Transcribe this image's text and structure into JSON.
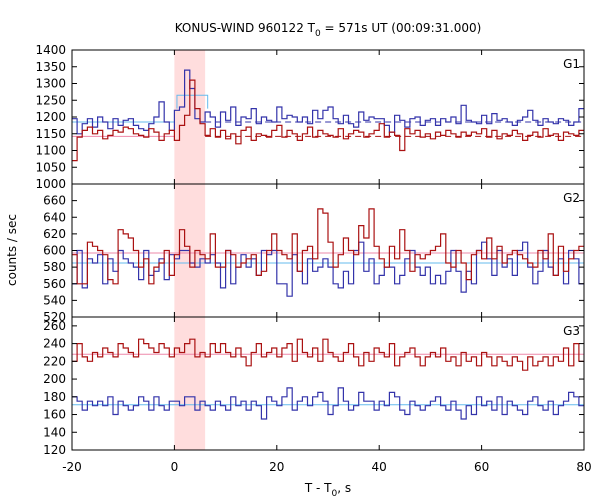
{
  "chart_data": {
    "type": "line",
    "title": "KONUS-WIND 960122 T",
    "title_sub": "0",
    "title_rest": " = 571s UT (00:09:31.000)",
    "xlabel": "T - T",
    "xlabel_sub": "0",
    "xlabel_rest": ", s",
    "ylabel": "counts / sec",
    "xlim": [
      -20,
      80
    ],
    "x_ticks": [
      -20,
      0,
      20,
      40,
      60,
      80
    ],
    "x_tick_labels": [
      "-20",
      "0",
      "20",
      "40",
      "60",
      "80"
    ],
    "shaded_interval": {
      "x0": 0,
      "x1": 6,
      "color": "#ffdddd"
    },
    "step": 1,
    "x_start": -20,
    "colors": {
      "blue": "#3333aa",
      "red": "#aa1111",
      "cyan": "#66bbee",
      "pink": "#ee88aa"
    },
    "panels": [
      {
        "label": "G1",
        "ylim": [
          1000,
          1400
        ],
        "y_ticks": [
          1000,
          1050,
          1100,
          1150,
          1200,
          1250,
          1300,
          1350,
          1400
        ],
        "y_tick_labels": [
          "1000",
          "1050",
          "1100",
          "1150",
          "1200",
          "1250",
          "1300",
          "1350",
          "1400"
        ],
        "series": [
          {
            "color": "#3333aa",
            "values": [
              1195,
              1150,
              1180,
              1195,
              1170,
              1200,
              1185,
              1165,
              1195,
              1175,
              1190,
              1195,
              1175,
              1165,
              1160,
              1180,
              1200,
              1245,
              1185,
              1160,
              1220,
              1230,
              1340,
              1285,
              1195,
              1185,
              1215,
              1200,
              1170,
              1215,
              1190,
              1230,
              1175,
              1200,
              1195,
              1225,
              1180,
              1200,
              1190,
              1185,
              1230,
              1195,
              1205,
              1200,
              1185,
              1200,
              1180,
              1220,
              1195,
              1220,
              1230,
              1195,
              1180,
              1205,
              1180,
              1170,
              1215,
              1190,
              1200,
              1195,
              1195,
              1175,
              1155,
              1205,
              1190,
              1170,
              1195,
              1200,
              1175,
              1190,
              1195,
              1175,
              1195,
              1185,
              1200,
              1180,
              1235,
              1190,
              1185,
              1180,
              1205,
              1180,
              1210,
              1190,
              1195,
              1185,
              1175,
              1190,
              1200,
              1220,
              1190,
              1175,
              1195,
              1185,
              1180,
              1195,
              1190,
              1175,
              1185,
              1225
            ]
          },
          {
            "color": "#aa1111",
            "values": [
              1070,
              1140,
              1160,
              1170,
              1150,
              1160,
              1135,
              1145,
              1160,
              1155,
              1170,
              1165,
              1150,
              1145,
              1140,
              1165,
              1155,
              1130,
              1150,
              1160,
              1130,
              1175,
              1205,
              1310,
              1225,
              1180,
              1145,
              1165,
              1140,
              1160,
              1135,
              1150,
              1120,
              1160,
              1170,
              1130,
              1150,
              1145,
              1140,
              1160,
              1175,
              1140,
              1160,
              1150,
              1130,
              1150,
              1170,
              1140,
              1160,
              1150,
              1145,
              1140,
              1165,
              1135,
              1150,
              1160,
              1155,
              1140,
              1150,
              1160,
              1180,
              1140,
              1155,
              1145,
              1100,
              1165,
              1150,
              1160,
              1140,
              1150,
              1135,
              1155,
              1145,
              1160,
              1150,
              1140,
              1155,
              1145,
              1155,
              1150,
              1165,
              1140,
              1160,
              1135,
              1150,
              1145,
              1160,
              1150,
              1130,
              1145,
              1155,
              1140,
              1165,
              1145,
              1150,
              1130,
              1155,
              1150,
              1145,
              1160
            ]
          }
        ],
        "bg_lines": [
          {
            "color": "#3333aa",
            "value": 1185,
            "dashed": true,
            "x0": 6,
            "x1": 80
          },
          {
            "color": "#aa1111",
            "value": 1142,
            "dashed": true,
            "x0": 6,
            "x1": 80
          },
          {
            "color": "#66bbee",
            "value": 1185,
            "dashed": false,
            "x0": -20,
            "x1": 0
          },
          {
            "color": "#ee88aa",
            "value": 1142,
            "dashed": false,
            "x0": -20,
            "x1": 0
          }
        ],
        "boxes": [
          {
            "color": "#66bbee",
            "x0": 0.5,
            "x1": 6.5,
            "value": 1265
          }
        ]
      },
      {
        "label": "G2",
        "ylim": [
          520,
          680
        ],
        "y_ticks": [
          520,
          540,
          560,
          580,
          600,
          620,
          640,
          660
        ],
        "y_tick_labels": [
          "520",
          "540",
          "560",
          "580",
          "600",
          "620",
          "640",
          "660"
        ],
        "series": [
          {
            "color": "#3333aa",
            "values": [
              560,
              600,
              555,
              590,
              585,
              595,
              560,
              590,
              575,
              600,
              590,
              585,
              580,
              565,
              600,
              570,
              575,
              590,
              565,
              595,
              590,
              600,
              600,
              585,
              580,
              590,
              585,
              595,
              585,
              555,
              600,
              560,
              580,
              595,
              580,
              590,
              570,
              600,
              595,
              600,
              560,
              560,
              545,
              595,
              575,
              560,
              590,
              575,
              580,
              590,
              580,
              560,
              555,
              575,
              560,
              600,
              610,
              575,
              590,
              560,
              570,
              580,
              580,
              560,
              570,
              590,
              600,
              580,
              570,
              580,
              560,
              570,
              560,
              575,
              600,
              575,
              550,
              575,
              560,
              600,
              610,
              590,
              570,
              600,
              580,
              590,
              570,
              600,
              610,
              580,
              560,
              575,
              600,
              580,
              570,
              590,
              560,
              600,
              590,
              560
            ]
          },
          {
            "color": "#aa1111",
            "values": [
              595,
              560,
              560,
              610,
              605,
              600,
              595,
              565,
              560,
              625,
              620,
              615,
              600,
              580,
              590,
              560,
              580,
              585,
              600,
              570,
              595,
              625,
              605,
              580,
              600,
              595,
              590,
              620,
              580,
              580,
              600,
              595,
              580,
              585,
              590,
              595,
              570,
              575,
              600,
              620,
              600,
              595,
              590,
              620,
              575,
              600,
              605,
              590,
              650,
              645,
              610,
              580,
              595,
              615,
              600,
              595,
              630,
              615,
              650,
              605,
              590,
              580,
              605,
              590,
              625,
              600,
              575,
              595,
              590,
              595,
              600,
              605,
              620,
              585,
              580,
              600,
              585,
              565,
              595,
              600,
              590,
              615,
              590,
              605,
              585,
              595,
              600,
              595,
              590,
              585,
              580,
              600,
              590,
              620,
              570,
              605,
              575,
              590,
              600,
              605
            ]
          }
        ],
        "bg_lines": [
          {
            "color": "#66bbee",
            "value": 585,
            "dashed": false,
            "x0": -20,
            "x1": 80
          },
          {
            "color": "#ee88aa",
            "value": 597,
            "dashed": false,
            "x0": -20,
            "x1": 80
          }
        ],
        "boxes": []
      },
      {
        "label": "G3",
        "ylim": [
          120,
          270
        ],
        "y_ticks": [
          120,
          140,
          160,
          180,
          200,
          220,
          240,
          260
        ],
        "y_tick_labels": [
          "120",
          "140",
          "160",
          "180",
          "200",
          "220",
          "240",
          "260"
        ],
        "series": [
          {
            "color": "#3333aa",
            "values": [
              180,
              175,
              165,
              175,
              170,
              175,
              170,
              180,
              160,
              175,
              170,
              165,
              170,
              180,
              175,
              165,
              180,
              170,
              165,
              175,
              175,
              170,
              180,
              180,
              165,
              175,
              170,
              165,
              175,
              170,
              165,
              180,
              170,
              175,
              165,
              175,
              170,
              155,
              180,
              175,
              170,
              180,
              190,
              165,
              175,
              180,
              170,
              180,
              185,
              175,
              160,
              170,
              190,
              175,
              165,
              170,
              185,
              175,
              175,
              165,
              175,
              170,
              185,
              180,
              165,
              160,
              175,
              170,
              165,
              170,
              175,
              180,
              170,
              165,
              175,
              165,
              155,
              170,
              160,
              180,
              170,
              175,
              165,
              180,
              160,
              175,
              170,
              165,
              160,
              175,
              180,
              170,
              165,
              175,
              160,
              170,
              175,
              185,
              180,
              170
            ]
          },
          {
            "color": "#aa1111",
            "values": [
              220,
              240,
              225,
              220,
              230,
              225,
              235,
              230,
              225,
              240,
              235,
              230,
              225,
              245,
              240,
              235,
              230,
              240,
              235,
              225,
              235,
              230,
              240,
              245,
              225,
              230,
              225,
              240,
              230,
              240,
              230,
              225,
              235,
              225,
              215,
              230,
              240,
              225,
              230,
              235,
              225,
              235,
              240,
              220,
              245,
              230,
              225,
              235,
              220,
              245,
              230,
              225,
              220,
              230,
              240,
              225,
              215,
              230,
              220,
              235,
              230,
              225,
              240,
              215,
              225,
              230,
              235,
              225,
              215,
              225,
              230,
              225,
              235,
              220,
              225,
              215,
              230,
              220,
              225,
              215,
              230,
              225,
              215,
              225,
              220,
              215,
              225,
              220,
              210,
              225,
              215,
              220,
              225,
              215,
              225,
              220,
              235,
              215,
              240,
              220
            ]
          }
        ],
        "bg_lines": [
          {
            "color": "#66bbee",
            "value": 171,
            "dashed": false,
            "x0": -20,
            "x1": 80
          },
          {
            "color": "#ee88aa",
            "value": 228,
            "dashed": false,
            "x0": -20,
            "x1": 80
          }
        ],
        "boxes": []
      }
    ]
  }
}
